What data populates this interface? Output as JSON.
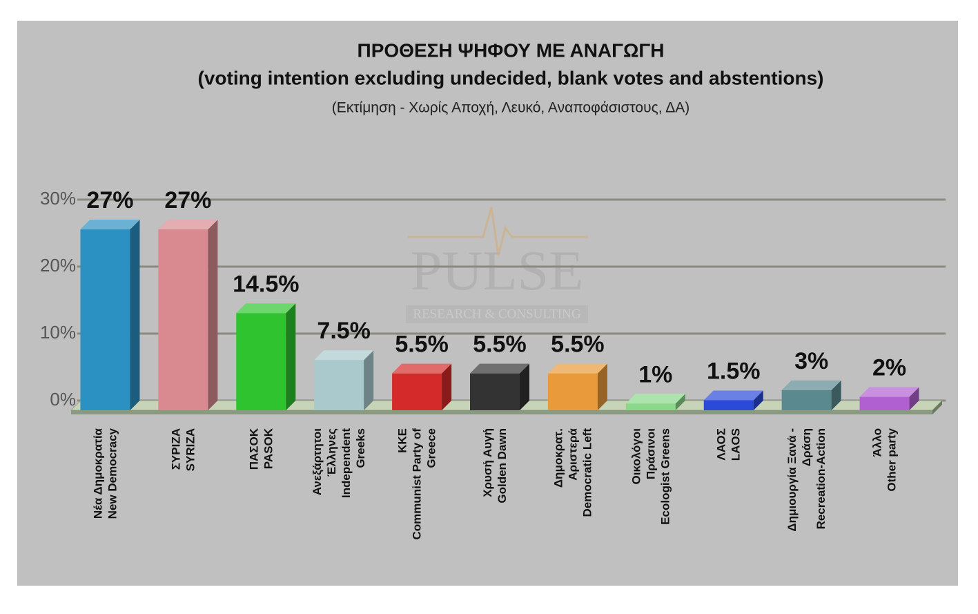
{
  "chart_data": {
    "type": "bar3d",
    "title": "ΠΡΟΘΕΣΗ ΨΗΦΟΥ ΜΕ ΑΝΑΓΩΓΗ",
    "subtitle": "(voting intention excluding undecided, blank votes and abstentions)",
    "note": "(Εκτίμηση  -  Χωρίς Αποχή, Λευκό, Αναποφάσιστους, ΔΑ)",
    "watermark": {
      "name": "PULSE",
      "tagline": "RESEARCH & CONSULTING"
    },
    "categories": [
      [
        "Νέα Δημοκρατία",
        "New Democracy"
      ],
      [
        "ΣΥΡΙΖΑ",
        "SYRIZA"
      ],
      [
        "ΠΑΣΟΚ",
        "PASOK"
      ],
      [
        "Ανεξάρτητοι",
        "Έλληνες",
        "Independent",
        "Greeks"
      ],
      [
        "ΚΚΕ",
        "Communist Party of",
        "Greece"
      ],
      [
        "Χρυσή Αυγή",
        "Golden Dawn"
      ],
      [
        "Δημοκρατ.",
        "Αριστερά",
        "Democratic Left"
      ],
      [
        "Οικολόγοι",
        "Πράσινοι",
        "Ecologist Greens"
      ],
      [
        "ΛΑΟΣ",
        "LAOS"
      ],
      [
        "Δημιουργία Ξανά -",
        "Δράση",
        "Recreation-Action"
      ],
      [
        "Άλλο",
        "Other party"
      ]
    ],
    "values": [
      27,
      27,
      14.5,
      7.5,
      5.5,
      5.5,
      5.5,
      1,
      1.5,
      3,
      2
    ],
    "value_labels": [
      "27%",
      "27%",
      "14.5%",
      "7.5%",
      "5.5%",
      "5.5%",
      "5.5%",
      "1%",
      "1.5%",
      "3%",
      "2%"
    ],
    "colors": [
      "#2b90c2",
      "#d98a90",
      "#2fc42f",
      "#a9c9cc",
      "#d42a2a",
      "#333333",
      "#e99a3a",
      "#8ad88a",
      "#2a4ad8",
      "#5a8a90",
      "#b060d0"
    ],
    "ylim": [
      0,
      30
    ],
    "yticks": [
      {
        "value": 0,
        "label": "0%"
      },
      {
        "value": 10,
        "label": "10%"
      },
      {
        "value": 20,
        "label": "20%"
      },
      {
        "value": 30,
        "label": "30%"
      }
    ],
    "grid": true
  }
}
